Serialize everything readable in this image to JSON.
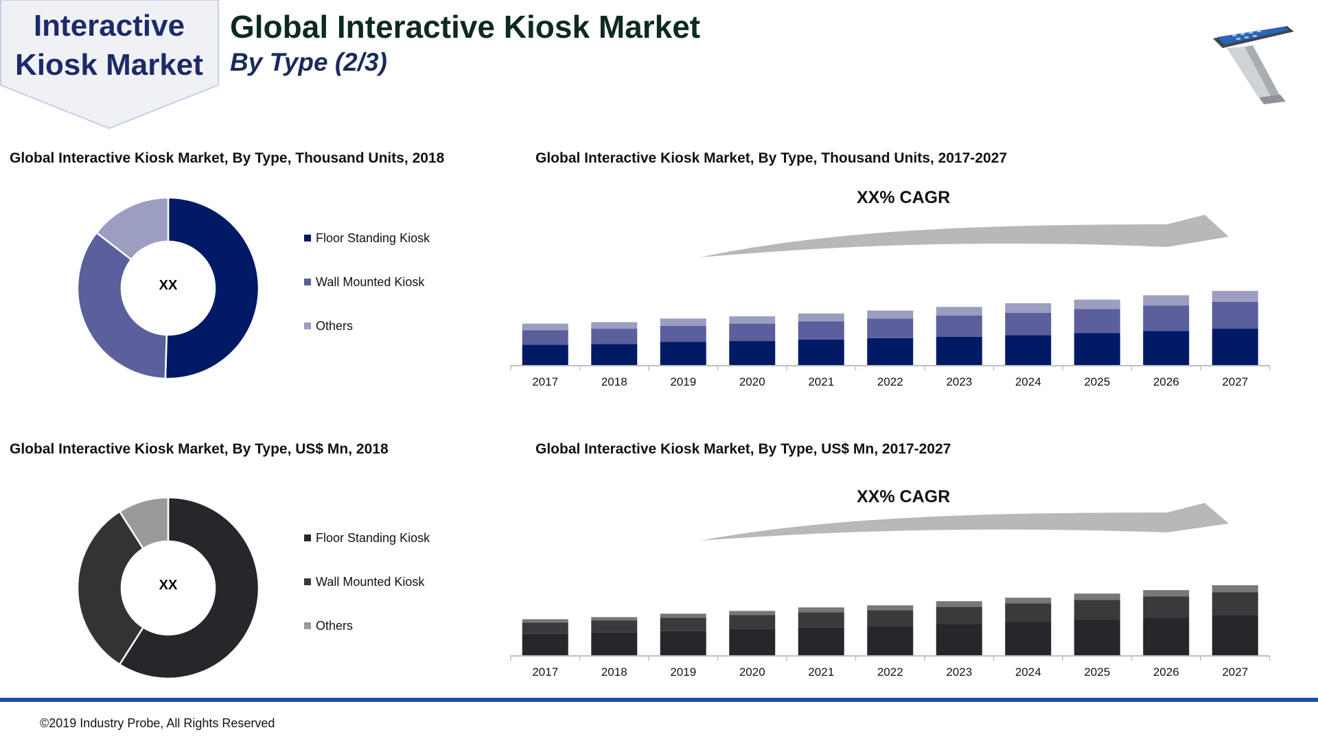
{
  "badge": {
    "line1": "Interactive",
    "line2": "Kiosk Market"
  },
  "header": {
    "title": "Global Interactive Kiosk Market",
    "subtitle": "By Type (2/3)"
  },
  "colors": {
    "units": [
      "#001a66",
      "#5b5f9c",
      "#9b9dc1"
    ],
    "value": [
      "#27272b",
      "#3a3a3d",
      "#777777"
    ],
    "value_donut": [
      "#27272b",
      "#333336",
      "#9a9a9a"
    ],
    "arrow": "#b8b8b8"
  },
  "legend": [
    "Floor Standing Kiosk",
    "Wall Mounted Kiosk",
    "Others"
  ],
  "charts": {
    "units_donut_title": "Global Interactive Kiosk Market, By Type, Thousand Units, 2018",
    "units_bar_title": "Global Interactive Kiosk Market, By Type, Thousand Units, 2017-2027",
    "value_donut_title": "Global Interactive Kiosk Market, By Type, US$ Mn, 2018",
    "value_bar_title": "Global Interactive Kiosk Market, By Type, US$ Mn, 2017-2027",
    "donut_center": "XX",
    "cagr": "XX% CAGR"
  },
  "chart_data": [
    {
      "type": "pie",
      "title": "Global Interactive Kiosk Market, By Type, Thousand Units, 2018",
      "categories": [
        "Floor Standing Kiosk",
        "Wall Mounted Kiosk",
        "Others"
      ],
      "values": [
        50.5,
        35,
        14.5
      ],
      "center_label": "XX"
    },
    {
      "type": "bar",
      "stacked": true,
      "title": "Global Interactive Kiosk Market, By Type, Thousand Units, 2017-2027",
      "categories": [
        "2017",
        "2018",
        "2019",
        "2020",
        "2021",
        "2022",
        "2023",
        "2024",
        "2025",
        "2026",
        "2027"
      ],
      "series": [
        {
          "name": "Floor Standing Kiosk",
          "values": [
            28,
            29,
            32,
            33,
            35,
            37,
            39,
            41,
            44,
            47,
            50
          ]
        },
        {
          "name": "Wall Mounted Kiosk",
          "values": [
            20,
            21,
            22,
            24,
            25,
            27,
            29,
            31,
            33,
            35,
            37
          ]
        },
        {
          "name": "Others",
          "values": [
            9,
            9,
            10,
            10,
            11,
            11,
            12,
            13,
            13,
            14,
            15
          ]
        }
      ],
      "annotation": "XX% CAGR"
    },
    {
      "type": "pie",
      "title": "Global Interactive Kiosk Market, By Type, US$ Mn, 2018",
      "categories": [
        "Floor Standing Kiosk",
        "Wall Mounted Kiosk",
        "Others"
      ],
      "values": [
        59,
        32,
        9
      ],
      "center_label": "XX"
    },
    {
      "type": "bar",
      "stacked": true,
      "title": "Global Interactive Kiosk Market, By Type, US$ Mn, 2017-2027",
      "categories": [
        "2017",
        "2018",
        "2019",
        "2020",
        "2021",
        "2022",
        "2023",
        "2024",
        "2025",
        "2026",
        "2027"
      ],
      "series": [
        {
          "name": "Floor Standing Kiosk",
          "values": [
            31,
            33,
            35,
            38,
            40,
            42,
            45,
            48,
            51,
            54,
            58
          ]
        },
        {
          "name": "Wall Mounted Kiosk",
          "values": [
            16,
            17,
            19,
            20,
            22,
            23,
            25,
            27,
            29,
            31,
            33
          ]
        },
        {
          "name": "Others",
          "values": [
            5,
            5,
            6,
            6,
            7,
            7,
            8,
            8,
            9,
            9,
            10
          ]
        }
      ],
      "annotation": "XX% CAGR"
    }
  ],
  "footer": {
    "copyright": "©2019 Industry Probe, All Rights Reserved"
  }
}
